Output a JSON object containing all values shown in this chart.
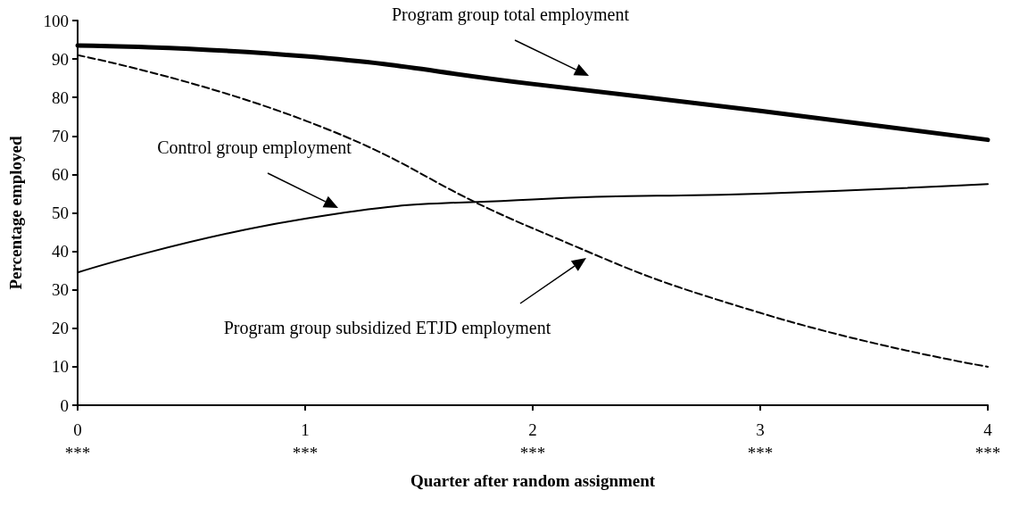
{
  "chart_data": {
    "type": "line",
    "xlabel": "Quarter after random assignment",
    "ylabel": "Percentage employed",
    "x": [
      0,
      1,
      2,
      3,
      4
    ],
    "series": [
      {
        "color": "#000000",
        "values": [
          93.5,
          90.7,
          83.5,
          76.5,
          69
        ],
        "line_style": "solid"
      },
      {
        "color": "#000000",
        "values": [
          34.5,
          48.5,
          53.5,
          55,
          57.5
        ],
        "line_style": "solid"
      },
      {
        "color": "#000000",
        "values": [
          91,
          74,
          46,
          24,
          10
        ],
        "line_style": "dashed"
      }
    ],
    "xlim": [
      0,
      4
    ],
    "xticks": [
      {
        "value": 0,
        "label": "0\n***"
      },
      {
        "value": 1,
        "label": "1\n***"
      },
      {
        "value": 2,
        "label": "2\n***"
      },
      {
        "value": 3,
        "label": "3\n***"
      },
      {
        "value": 4,
        "label": "4\n***"
      }
    ],
    "ylim": [
      0,
      100
    ],
    "yticks": [
      0,
      10,
      20,
      30,
      40,
      50,
      60,
      70,
      80,
      90,
      100
    ],
    "marker": "none",
    "annotations": [
      "Program group total employment",
      "Control group employment",
      "Program group subsidized ETJD employment"
    ]
  }
}
